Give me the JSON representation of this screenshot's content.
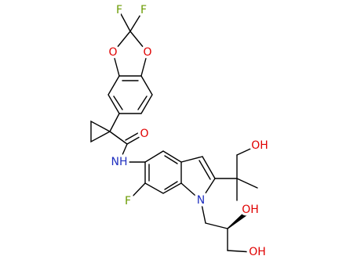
{
  "atoms": {
    "f_left": "F",
    "f_right": "F",
    "o_left": "O",
    "o_right": "O",
    "o_amide": "O",
    "nh": "NH",
    "f_indole": "F",
    "n_indole": "N",
    "oh_top": "OH",
    "oh_mid": "OH",
    "oh_bottom": "OH"
  }
}
